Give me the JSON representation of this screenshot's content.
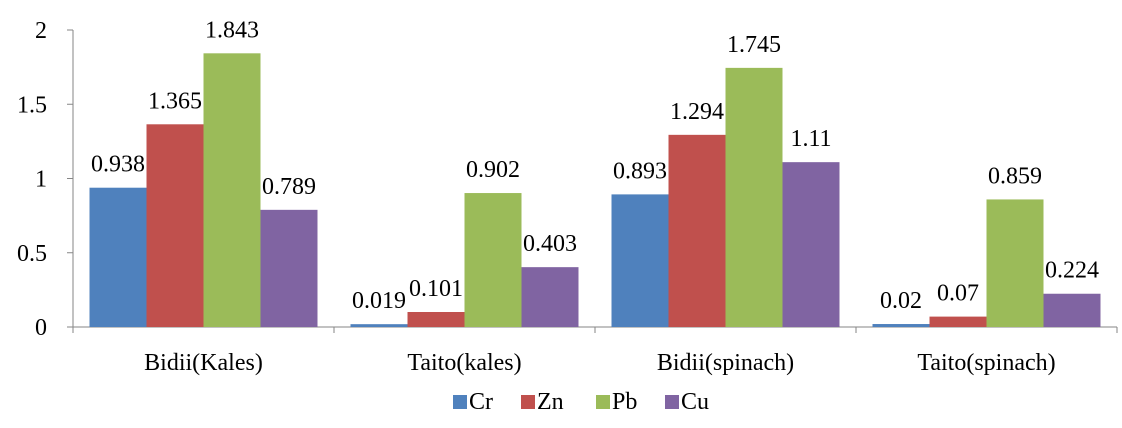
{
  "chart_data": {
    "type": "bar",
    "title": "",
    "xlabel": "",
    "ylabel": "",
    "categories": [
      "Bidii(Kales)",
      "Taito(kales)",
      "Bidii(spinach)",
      "Taito(spinach)"
    ],
    "series": [
      {
        "name": "Cr",
        "color": "#4F81BD",
        "values": [
          0.938,
          0.019,
          0.893,
          0.02
        ],
        "labels": [
          "0.938",
          "0.019",
          "0.893",
          "0.02"
        ]
      },
      {
        "name": "Zn",
        "color": "#C0504D",
        "values": [
          1.365,
          0.101,
          1.294,
          0.07
        ],
        "labels": [
          "1.365",
          "0.101",
          "1.294",
          "0.07"
        ]
      },
      {
        "name": "Pb",
        "color": "#9BBB59",
        "values": [
          1.843,
          0.902,
          1.745,
          0.859
        ],
        "labels": [
          "1.843",
          "0.902",
          "1.745",
          "0.859"
        ]
      },
      {
        "name": "Cu",
        "color": "#8064A2",
        "values": [
          0.789,
          0.403,
          1.11,
          0.224
        ],
        "labels": [
          "0.789",
          "0.403",
          "1.11",
          "0.224"
        ]
      }
    ],
    "ylim": [
      0,
      2
    ],
    "yticks": [
      "0",
      "0.5",
      "1",
      "1.5",
      "2"
    ],
    "grid": false,
    "legend_position": "bottom"
  }
}
